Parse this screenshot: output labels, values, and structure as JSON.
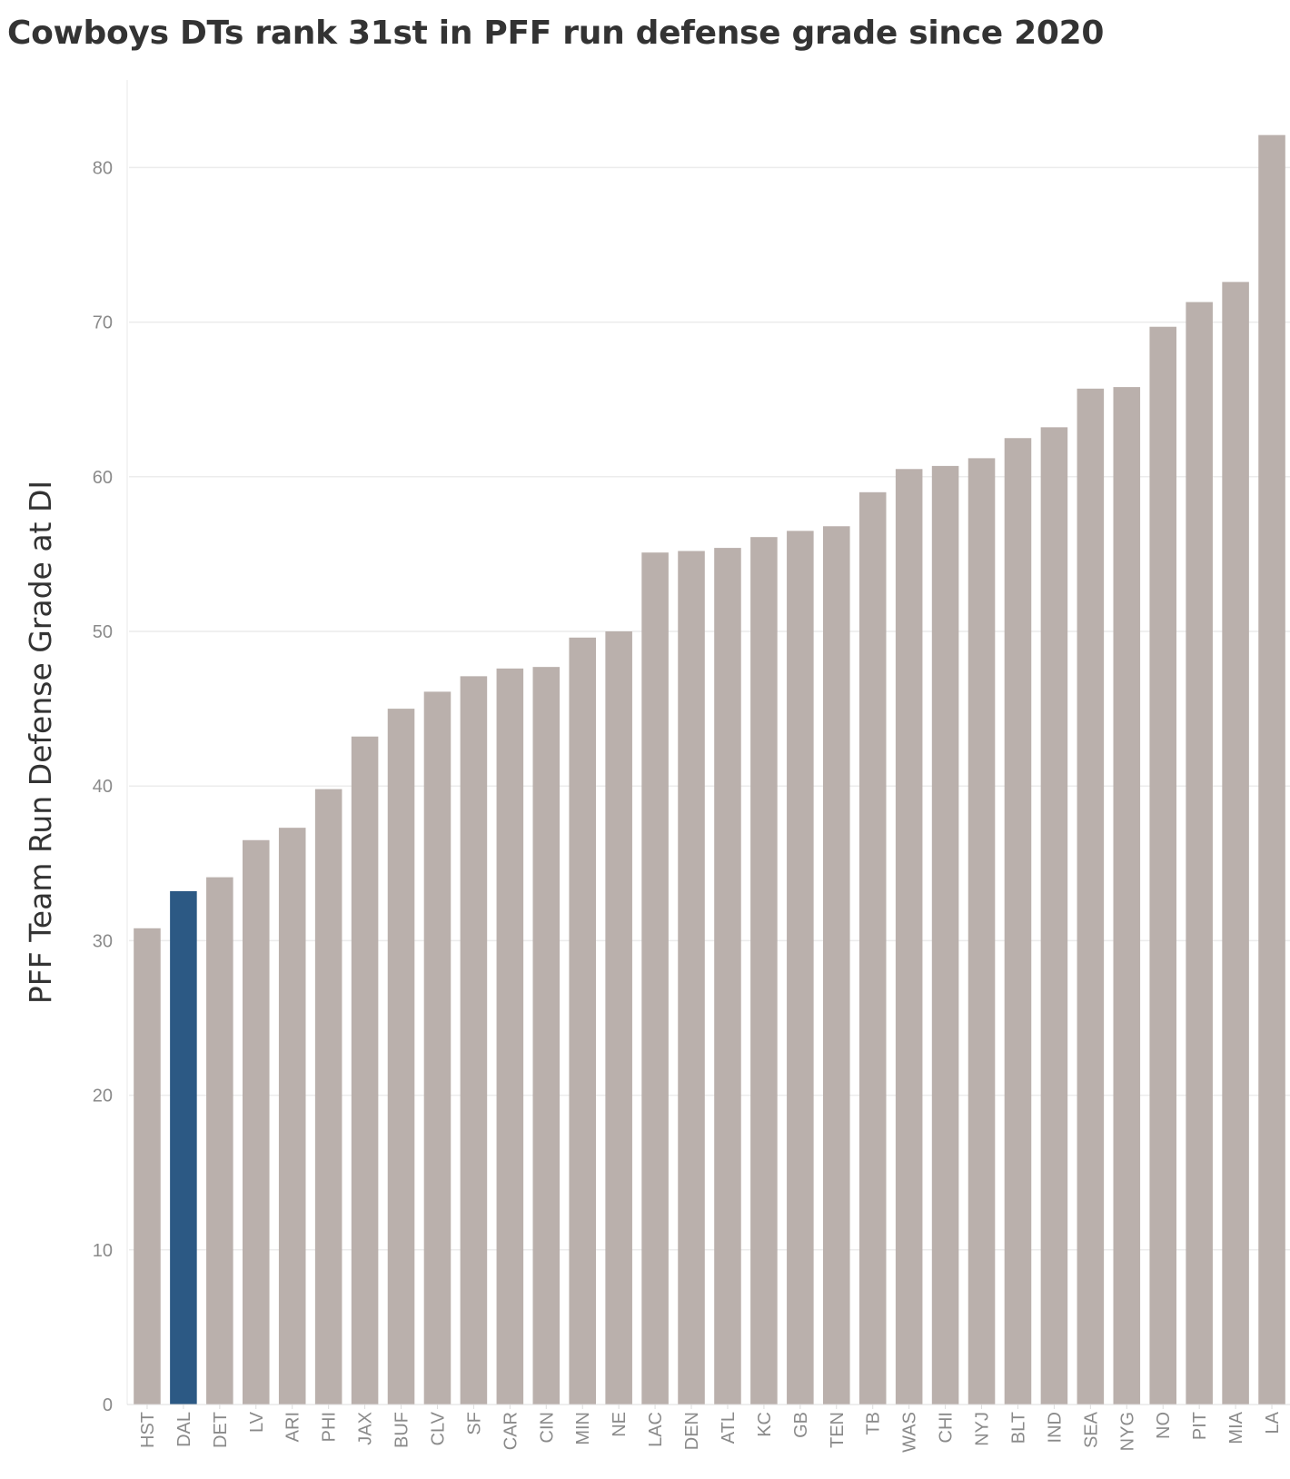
{
  "chart_data": {
    "type": "bar",
    "title": "Cowboys DTs rank 31st in PFF run defense grade since 2020",
    "xlabel": "",
    "ylabel": "PFF Team Run Defense Grade at DI",
    "ylim": [
      0,
      86
    ],
    "yticks": [
      0,
      10,
      20,
      30,
      40,
      50,
      60,
      70,
      80
    ],
    "grid": true,
    "categories": [
      "HST",
      "DAL",
      "DET",
      "LV",
      "ARI",
      "PHI",
      "JAX",
      "BUF",
      "CLV",
      "SF",
      "CAR",
      "CIN",
      "MIN",
      "NE",
      "LAC",
      "DEN",
      "ATL",
      "KC",
      "GB",
      "TEN",
      "TB",
      "WAS",
      "CHI",
      "NYJ",
      "BLT",
      "IND",
      "SEA",
      "NYG",
      "NO",
      "PIT",
      "MIA",
      "LA"
    ],
    "values": [
      30.8,
      33.2,
      34.1,
      36.5,
      37.3,
      39.8,
      43.2,
      45.0,
      46.1,
      47.1,
      47.6,
      47.7,
      49.6,
      50.0,
      55.1,
      55.2,
      55.4,
      56.1,
      56.5,
      56.8,
      59.0,
      60.5,
      60.7,
      61.2,
      62.5,
      63.2,
      65.7,
      65.8,
      69.7,
      71.3,
      72.6,
      82.1
    ],
    "highlight": "DAL",
    "colors": {
      "bar": "#bab0ac",
      "highlight": "#2c5984",
      "grid": "#ececec",
      "text": "#333333",
      "tick": "#8a8a8a"
    }
  }
}
